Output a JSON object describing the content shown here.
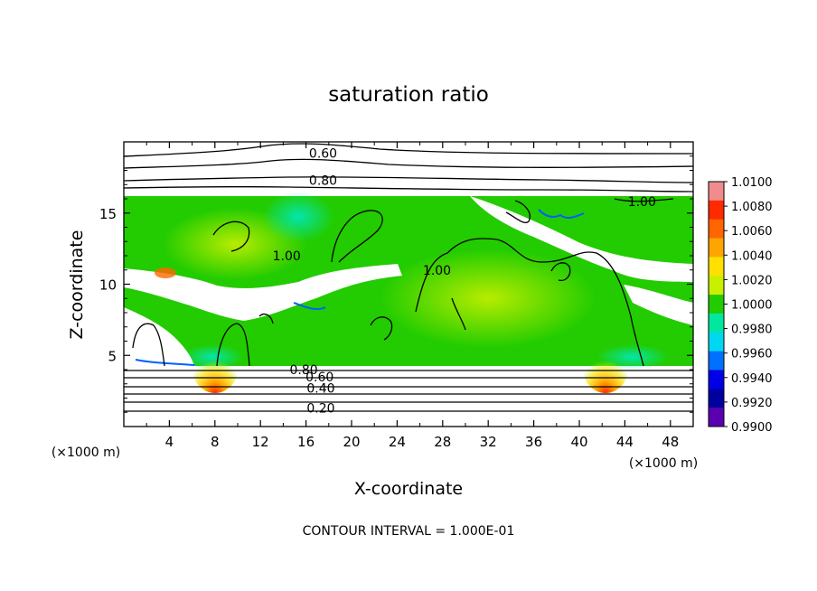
{
  "chart_data": {
    "type": "heatmap",
    "title": "saturation ratio",
    "xlabel": "X-coordinate",
    "ylabel": "Z-coordinate",
    "x_unit": "(×1000 m)",
    "z_unit": "(×1000 m)",
    "xlim": [
      0,
      50
    ],
    "ylim": [
      0,
      20
    ],
    "x_ticks": [
      "4",
      "8",
      "12",
      "16",
      "20",
      "24",
      "28",
      "32",
      "36",
      "40",
      "44",
      "48"
    ],
    "y_ticks": [
      "5",
      "10",
      "15"
    ],
    "footer": "CONTOUR INTERVAL = 1.000E-01",
    "contour_interval": 0.1,
    "contour_labels": [
      {
        "text": "0.60",
        "x": 17.5,
        "z": 19.2
      },
      {
        "text": "0.80",
        "x": 17.5,
        "z": 17.3
      },
      {
        "text": "1.00",
        "x": 45.5,
        "z": 15.8
      },
      {
        "text": "1.00",
        "x": 27.5,
        "z": 11.0
      },
      {
        "text": "1.00",
        "x": 14.3,
        "z": 12.0
      },
      {
        "text": "0.80",
        "x": 15.8,
        "z": 4.0
      },
      {
        "text": "0.60",
        "x": 17.2,
        "z": 3.5
      },
      {
        "text": "0.40",
        "x": 17.3,
        "z": 2.7
      },
      {
        "text": "0.20",
        "x": 17.3,
        "z": 1.3
      }
    ],
    "colorbar": {
      "min": 0.99,
      "max": 1.01,
      "labels": [
        "1.0100",
        "1.0080",
        "1.0060",
        "1.0040",
        "1.0020",
        "1.0000",
        "0.9980",
        "0.9960",
        "0.9940",
        "0.9920",
        "0.9900"
      ],
      "colors": [
        "#f08c8c",
        "#ff2a00",
        "#ff6600",
        "#ffa500",
        "#ffe000",
        "#c8f000",
        "#22cc00",
        "#00e8a0",
        "#00d8f0",
        "#0070ff",
        "#0000e8",
        "#0000a0",
        "#5a00b0"
      ]
    }
  }
}
